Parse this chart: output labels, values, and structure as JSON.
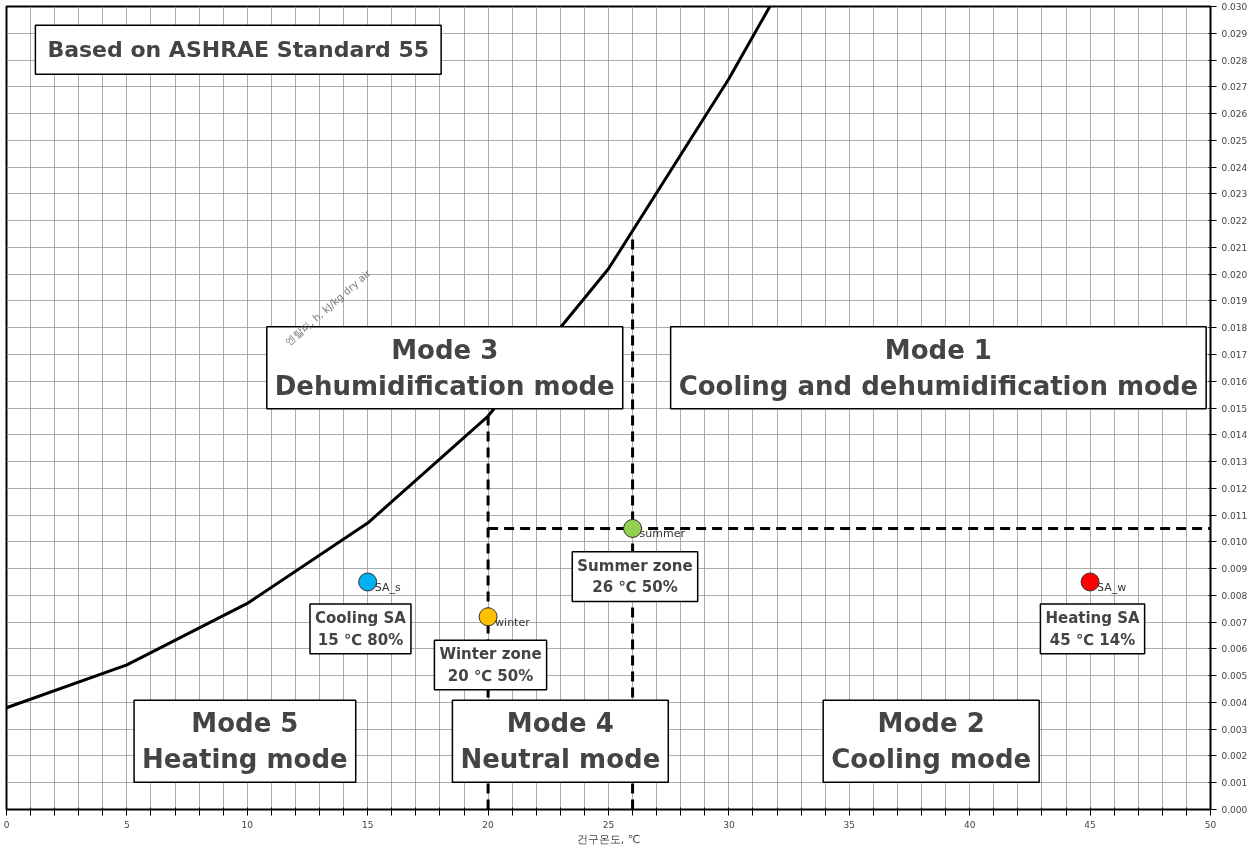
{
  "chart_data": {
    "type": "scatter",
    "title": "Based on ASHRAE Standard 55",
    "xlabel": "건구온도, ℃",
    "xlim": [
      0,
      50
    ],
    "ylim": [
      0,
      0.03
    ],
    "xticks": [
      0,
      {
        "value": 1,
        "label": null
      },
      {
        "value": 2,
        "label": null
      },
      {
        "value": 3,
        "label": null
      },
      {
        "value": 4,
        "label": null
      },
      5,
      {
        "value": 6,
        "label": null
      },
      {
        "value": 7,
        "label": null
      },
      {
        "value": 8,
        "label": null
      },
      {
        "value": 9,
        "label": null
      },
      10,
      {
        "value": 11,
        "label": null
      },
      {
        "value": 12,
        "label": null
      },
      {
        "value": 13,
        "label": null
      },
      {
        "value": 14,
        "label": null
      },
      15,
      {
        "value": 16,
        "label": null
      },
      {
        "value": 17,
        "label": null
      },
      {
        "value": 18,
        "label": null
      },
      {
        "value": 19,
        "label": null
      },
      20,
      {
        "value": 21,
        "label": null
      },
      {
        "value": 22,
        "label": null
      },
      {
        "value": 23,
        "label": null
      },
      {
        "value": 24,
        "label": null
      },
      25,
      {
        "value": 26,
        "label": null
      },
      {
        "value": 27,
        "label": null
      },
      {
        "value": 28,
        "label": null
      },
      {
        "value": 29,
        "label": null
      },
      30,
      {
        "value": 31,
        "label": null
      },
      {
        "value": 32,
        "label": null
      },
      {
        "value": 33,
        "label": null
      },
      {
        "value": 34,
        "label": null
      },
      35,
      {
        "value": 36,
        "label": null
      },
      {
        "value": 37,
        "label": null
      },
      {
        "value": 38,
        "label": null
      },
      {
        "value": 39,
        "label": null
      },
      40,
      {
        "value": 41,
        "label": null
      },
      {
        "value": 42,
        "label": null
      },
      {
        "value": 43,
        "label": null
      },
      {
        "value": 44,
        "label": null
      },
      45,
      {
        "value": 46,
        "label": null
      },
      {
        "value": 47,
        "label": null
      },
      {
        "value": 48,
        "label": null
      },
      {
        "value": 49,
        "label": null
      },
      50
    ],
    "yticks": [
      {
        "value": 0,
        "label": "0.000"
      },
      {
        "value": 0.001,
        "label": "0.001"
      },
      {
        "value": 0.002,
        "label": "0.002"
      },
      {
        "value": 0.003,
        "label": "0.003"
      },
      {
        "value": 0.004,
        "label": "0.004"
      },
      {
        "value": 0.005,
        "label": "0.005"
      },
      {
        "value": 0.006,
        "label": "0.006"
      },
      {
        "value": 0.007,
        "label": "0.007"
      },
      {
        "value": 0.008,
        "label": "0.008"
      },
      {
        "value": 0.009,
        "label": "0.009"
      },
      {
        "value": 0.01,
        "label": "0.010"
      },
      {
        "value": 0.011,
        "label": "0.011"
      },
      {
        "value": 0.012,
        "label": "0.012"
      },
      {
        "value": 0.013,
        "label": "0.013"
      },
      {
        "value": 0.014,
        "label": "0.014"
      },
      {
        "value": 0.015,
        "label": "0.015"
      },
      {
        "value": 0.016,
        "label": "0.016"
      },
      {
        "value": 0.017,
        "label": "0.017"
      },
      {
        "value": 0.018,
        "label": "0.018"
      },
      {
        "value": 0.019,
        "label": "0.019"
      },
      {
        "value": 0.02,
        "label": "0.020"
      },
      {
        "value": 0.021,
        "label": "0.021"
      },
      {
        "value": 0.022,
        "label": "0.022"
      },
      {
        "value": 0.023,
        "label": "0.023"
      },
      {
        "value": 0.024,
        "label": "0.024"
      },
      {
        "value": 0.025,
        "label": "0.025"
      },
      {
        "value": 0.026,
        "label": "0.026"
      },
      {
        "value": 0.027,
        "label": "0.027"
      },
      {
        "value": 0.028,
        "label": "0.028"
      },
      {
        "value": 0.029,
        "label": "0.029"
      },
      {
        "value": 0.03,
        "label": "0.030"
      }
    ],
    "grid": true,
    "series": [
      {
        "type": "line",
        "color": "#000000",
        "line_style": "solid",
        "x": [
          0,
          5,
          10,
          15,
          20,
          25,
          30,
          31.7
        ],
        "values": [
          0.0038,
          0.0054,
          0.0077,
          0.0107,
          0.0147,
          0.0202,
          0.0273,
          0.03
        ]
      },
      {
        "type": "line",
        "color": "#000000",
        "line_style": "dashed",
        "x": [
          20,
          20
        ],
        "values": [
          0,
          0.0147
        ]
      },
      {
        "type": "line",
        "color": "#000000",
        "line_style": "dashed",
        "x": [
          26,
          26
        ],
        "values": [
          0,
          0.0213
        ]
      },
      {
        "type": "line",
        "color": "#000000",
        "line_style": "dashed",
        "x": [
          20,
          50
        ],
        "values": [
          0.0105,
          0.0105
        ]
      },
      {
        "marker": "circle",
        "x": [
          26,
          15,
          20,
          45
        ],
        "values": [
          0.0105,
          0.0085,
          0.0072,
          0.0085
        ],
        "colors": [
          "#92d050",
          "#00b0f0",
          "#ffc000",
          "#ff0000"
        ],
        "value_labels": [
          "summer",
          "SA_s",
          "winter",
          "SA_w"
        ]
      }
    ],
    "annotations": [
      "Mode 3\nDehumidification mode",
      "Mode 1\nCooling and dehumidification mode",
      "Mode 5\nHeating mode",
      "Mode 4\nNeutral mode",
      "Mode 2\nCooling mode",
      "Summer zone\n26 ℃ 50%",
      "Cooling SA\n15 ℃ 80%",
      "Winter zone\n20 ℃ 50%",
      "Heating SA\n45 ℃ 14%",
      "엔탈피, h, kJ/kg dry air"
    ]
  }
}
